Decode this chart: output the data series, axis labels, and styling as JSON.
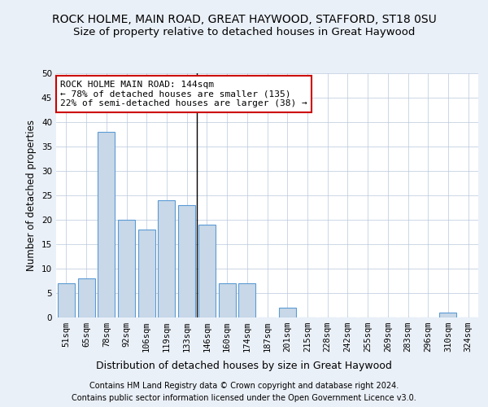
{
  "title1": "ROCK HOLME, MAIN ROAD, GREAT HAYWOOD, STAFFORD, ST18 0SU",
  "title2": "Size of property relative to detached houses in Great Haywood",
  "xlabel": "Distribution of detached houses by size in Great Haywood",
  "ylabel": "Number of detached properties",
  "categories": [
    "51sqm",
    "65sqm",
    "78sqm",
    "92sqm",
    "106sqm",
    "119sqm",
    "133sqm",
    "146sqm",
    "160sqm",
    "174sqm",
    "187sqm",
    "201sqm",
    "215sqm",
    "228sqm",
    "242sqm",
    "255sqm",
    "269sqm",
    "283sqm",
    "296sqm",
    "310sqm",
    "324sqm"
  ],
  "values": [
    7,
    8,
    38,
    20,
    18,
    24,
    23,
    19,
    7,
    7,
    0,
    2,
    0,
    0,
    0,
    0,
    0,
    0,
    0,
    1,
    0
  ],
  "bar_color": "#c8d8e8",
  "bar_edge_color": "#5b9bd5",
  "subject_label": "ROCK HOLME MAIN ROAD: 144sqm",
  "annotation_line1": "← 78% of detached houses are smaller (135)",
  "annotation_line2": "22% of semi-detached houses are larger (38) →",
  "annotation_box_color": "#ffffff",
  "annotation_box_edge": "#cc0000",
  "vline_x_index": 6.5,
  "ylim": [
    0,
    50
  ],
  "yticks": [
    0,
    5,
    10,
    15,
    20,
    25,
    30,
    35,
    40,
    45,
    50
  ],
  "footnote1": "Contains HM Land Registry data © Crown copyright and database right 2024.",
  "footnote2": "Contains public sector information licensed under the Open Government Licence v3.0.",
  "bg_color": "#eaf0f8",
  "plot_bg_color": "#ffffff",
  "title1_fontsize": 10,
  "title2_fontsize": 9.5,
  "xlabel_fontsize": 9,
  "ylabel_fontsize": 8.5,
  "tick_fontsize": 7.5,
  "annot_fontsize": 8,
  "footnote_fontsize": 7
}
